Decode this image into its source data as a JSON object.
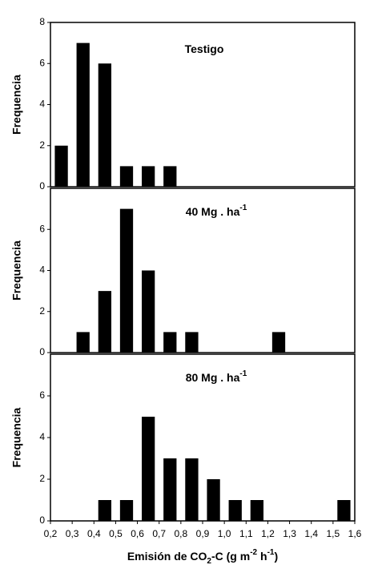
{
  "chart_data": [
    {
      "type": "bar",
      "title": "Testigo",
      "ylabel": "Frequencia",
      "color": "#000000",
      "x": [
        0.25,
        0.35,
        0.45,
        0.55,
        0.65,
        0.75
      ],
      "values": [
        2,
        7,
        6,
        1,
        1,
        1
      ],
      "xlim": [
        0.2,
        1.6
      ],
      "ylim": [
        0,
        8
      ],
      "yticks": [
        0,
        2,
        4,
        6,
        8
      ]
    },
    {
      "type": "bar",
      "title": "40 Mg . ha",
      "title_superscript": "-1",
      "ylabel": "Frequencia",
      "color": "#000000",
      "x": [
        0.35,
        0.45,
        0.55,
        0.65,
        0.75,
        0.85,
        1.25
      ],
      "values": [
        1,
        3,
        7,
        4,
        1,
        1,
        1
      ],
      "xlim": [
        0.2,
        1.6
      ],
      "ylim": [
        0,
        8
      ],
      "yticks": [
        0,
        2,
        4,
        6
      ]
    },
    {
      "type": "bar",
      "title": "80 Mg . ha",
      "title_superscript": "-1",
      "ylabel": "Frequencia",
      "color": "#000000",
      "x": [
        0.45,
        0.55,
        0.65,
        0.75,
        0.85,
        0.95,
        1.05,
        1.15,
        1.55
      ],
      "values": [
        1,
        1,
        5,
        3,
        3,
        2,
        1,
        1,
        1
      ],
      "xlim": [
        0.2,
        1.6
      ],
      "ylim": [
        0,
        8
      ],
      "yticks": [
        0,
        2,
        4,
        6
      ],
      "xticks": [
        {
          "value": 0.2,
          "label": "0,2"
        },
        {
          "value": 0.3,
          "label": "0,3"
        },
        {
          "value": 0.4,
          "label": "0,4"
        },
        {
          "value": 0.5,
          "label": "0,5"
        },
        {
          "value": 0.6,
          "label": "0,6"
        },
        {
          "value": 0.7,
          "label": "0,7"
        },
        {
          "value": 0.8,
          "label": "0,8"
        },
        {
          "value": 0.9,
          "label": "0,9"
        },
        {
          "value": 1.0,
          "label": "1,0"
        },
        {
          "value": 1.1,
          "label": "1,1"
        },
        {
          "value": 1.2,
          "label": "1,2"
        },
        {
          "value": 1.3,
          "label": "1,3"
        },
        {
          "value": 1.4,
          "label": "1,4"
        },
        {
          "value": 1.5,
          "label": "1,5"
        },
        {
          "value": 1.6,
          "label": "1,6"
        }
      ],
      "xlabel_parts": [
        {
          "text": "Emisión de CO"
        },
        {
          "text": "2",
          "shift": "sub"
        },
        {
          "text": "-C (g m"
        },
        {
          "text": "-2",
          "shift": "sup"
        },
        {
          "text": " h"
        },
        {
          "text": "-1",
          "shift": "sup"
        },
        {
          "text": ")"
        }
      ]
    }
  ]
}
